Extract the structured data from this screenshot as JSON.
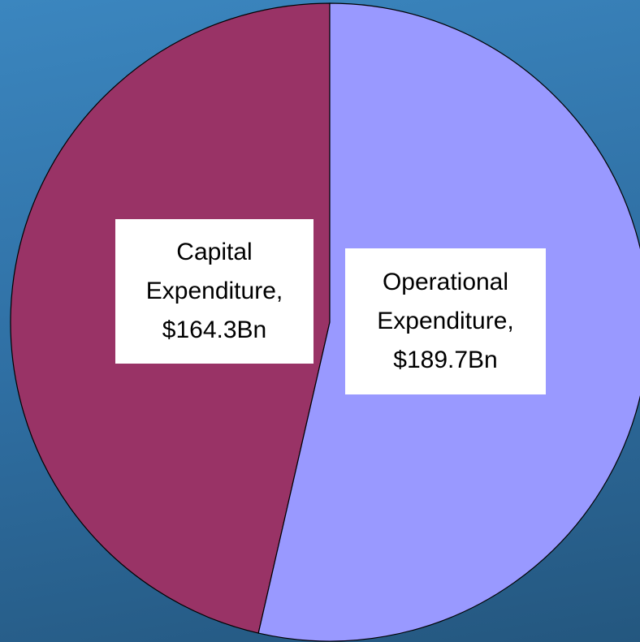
{
  "chart_data": {
    "type": "pie",
    "values": [
      164.3,
      189.7
    ],
    "value_labels": [
      "Capital Expenditure, $164.3Bn",
      "Operational Expenditure, $189.7Bn"
    ],
    "colors": [
      "#993366",
      "#9999ff"
    ],
    "start_angle": 0,
    "direction": "counterclockwise"
  }
}
